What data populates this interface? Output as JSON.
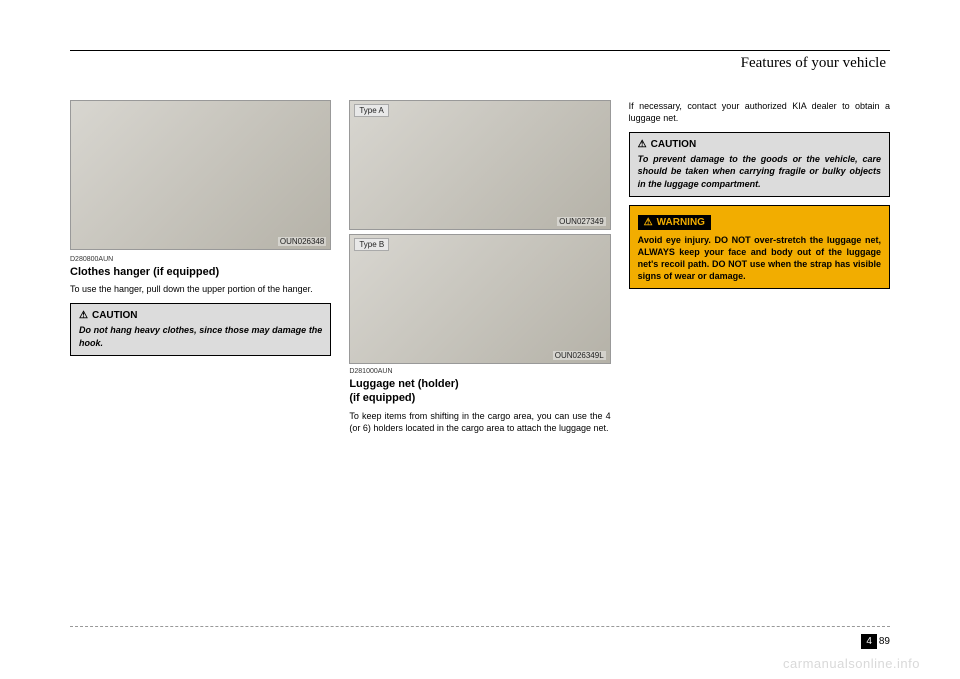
{
  "header": {
    "title": "Features of your vehicle"
  },
  "col1": {
    "photo1": {
      "code": "OUN026348"
    },
    "section_code": "D280800AUN",
    "section_title": "Clothes hanger (if equipped)",
    "body": "To use the hanger, pull down the upper portion of the hanger.",
    "caution": {
      "label": "CAUTION",
      "text": "Do not hang heavy clothes, since those may damage the hook."
    }
  },
  "col2": {
    "photoA": {
      "type": "Type A",
      "code": "OUN027349"
    },
    "photoB": {
      "type": "Type B",
      "code": "OUN026349L"
    },
    "section_code": "D281000AUN",
    "section_title": "Luggage net (holder)\n(if equipped)",
    "body": "To keep items from shifting in the cargo area, you can use the 4 (or 6) holders located in the cargo area to attach the luggage net."
  },
  "col3": {
    "intro": "If necessary, contact your authorized KIA dealer to obtain a luggage net.",
    "caution": {
      "label": "CAUTION",
      "text": "To prevent damage to the goods or the vehicle, care should be taken when carrying fragile or bulky objects in the luggage compartment."
    },
    "warning": {
      "label": "WARNING",
      "text": "Avoid eye injury. DO NOT over-stretch the luggage net, ALWAYS keep your face and body out of the luggage net's recoil path. DO NOT use when the strap has visible signs of wear or damage."
    }
  },
  "footer": {
    "chapter": "4",
    "page": "89"
  },
  "watermark": "carmanualsonline.info"
}
